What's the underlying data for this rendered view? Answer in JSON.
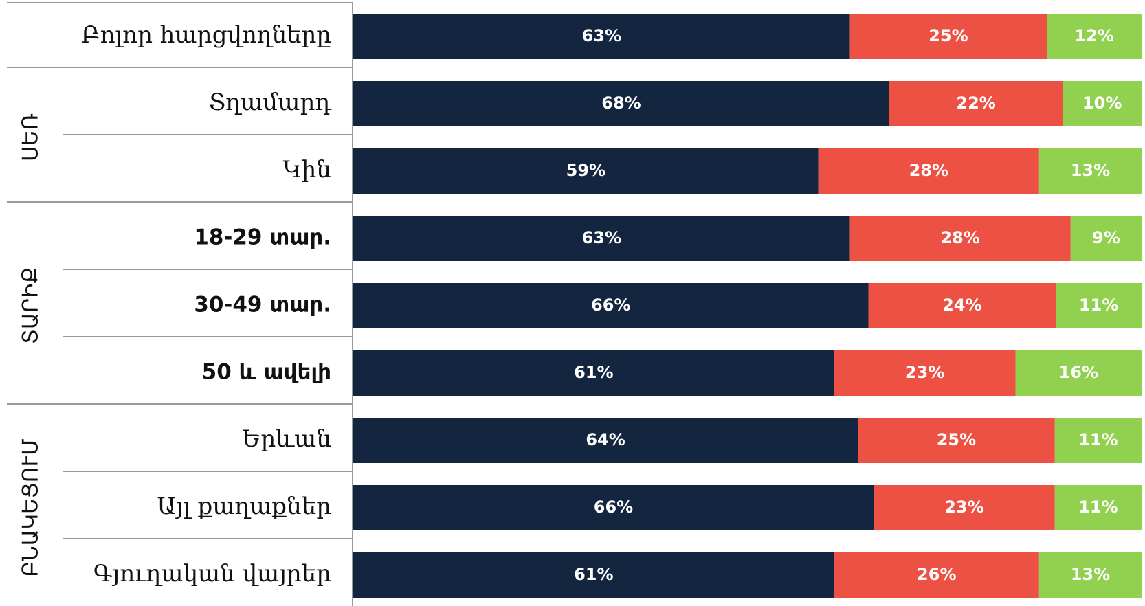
{
  "chart_data": {
    "type": "bar",
    "orientation": "horizontal",
    "stacked": true,
    "percent_labels": true,
    "categories": [
      "Բոլոր հարցվողները",
      "Տղամարդ",
      "Կին",
      "18-29 տար.",
      "30-49 տար.",
      "50 և ավելի",
      "Երևան",
      "Այլ քաղաքներ",
      "Գյուղական վայրեր"
    ],
    "groups": [
      {
        "label": "ՍԵՌ",
        "categories": [
          "Տղամարդ",
          "Կին"
        ]
      },
      {
        "label": "ՏԱՐԻՔ",
        "categories": [
          "18-29 տար.",
          "30-49 տար.",
          "50 և ավելի"
        ]
      },
      {
        "label": "ԲՆԱԿԵՑՈՒՄ",
        "categories": [
          "Երևան",
          "Այլ քաղաքներ",
          "Գյուղական վայրեր"
        ]
      }
    ],
    "series": [
      {
        "color": "#13253f",
        "values": [
          63,
          68,
          59,
          63,
          66,
          61,
          64,
          66,
          61
        ]
      },
      {
        "color": "#ed5144",
        "values": [
          25,
          22,
          28,
          28,
          24,
          23,
          25,
          23,
          26
        ]
      },
      {
        "color": "#92d050",
        "values": [
          12,
          10,
          13,
          9,
          11,
          16,
          11,
          11,
          13
        ]
      }
    ],
    "xlim": [
      0,
      100
    ],
    "grid": false,
    "legend": "none"
  }
}
